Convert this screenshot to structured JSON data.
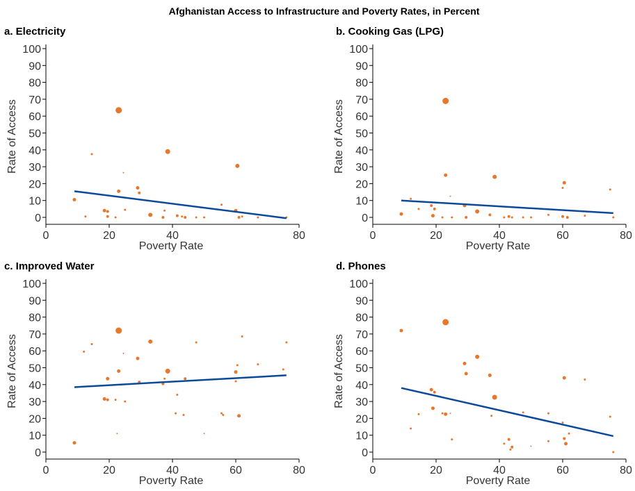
{
  "title": "Afghanistan Access to Infrastructure and Poverty Rates, in Percent",
  "colors": {
    "point": "#e8772e",
    "trend": "#0b4a9b"
  },
  "chart_data": [
    {
      "type": "scatter",
      "panel_title": "a. Electricity",
      "xlabel": "Poverty Rate",
      "ylabel": "Rate of Access",
      "xlim": [
        0,
        80
      ],
      "ylim": [
        0,
        100
      ],
      "xticks": [
        "0",
        "20",
        "40",
        "80"
      ],
      "yticks": [
        "0",
        "10",
        "20",
        "30",
        "40",
        "50",
        "60",
        "70",
        "80",
        "90",
        "100"
      ],
      "grid": false,
      "trend": [
        [
          9,
          15.5
        ],
        [
          76,
          -0.5
        ]
      ],
      "points": [
        {
          "x": 23,
          "y": 63.5,
          "s": 4.5
        },
        {
          "x": 38.5,
          "y": 39,
          "s": 3.5
        },
        {
          "x": 60.5,
          "y": 30.5,
          "s": 3
        },
        {
          "x": 14.5,
          "y": 37.5,
          "s": 1.5
        },
        {
          "x": 24.5,
          "y": 26.5,
          "s": 1
        },
        {
          "x": 29,
          "y": 17.5,
          "s": 2.5
        },
        {
          "x": 23,
          "y": 15.5,
          "s": 2.5
        },
        {
          "x": 29.5,
          "y": 14.5,
          "s": 2
        },
        {
          "x": 9,
          "y": 10.5,
          "s": 2.5
        },
        {
          "x": 18.5,
          "y": 4,
          "s": 2.5
        },
        {
          "x": 19.5,
          "y": 3.5,
          "s": 2
        },
        {
          "x": 25,
          "y": 4.5,
          "s": 1.5
        },
        {
          "x": 37.5,
          "y": 4,
          "s": 1.5
        },
        {
          "x": 55.5,
          "y": 7.5,
          "s": 1.5
        },
        {
          "x": 60,
          "y": 4,
          "s": 2.5
        },
        {
          "x": 33,
          "y": 1.5,
          "s": 3
        },
        {
          "x": 19.5,
          "y": 0.5,
          "s": 2
        },
        {
          "x": 12.5,
          "y": 0.5,
          "s": 1.5
        },
        {
          "x": 22,
          "y": 0,
          "s": 1.5
        },
        {
          "x": 37,
          "y": 0,
          "s": 2
        },
        {
          "x": 41.5,
          "y": 1,
          "s": 2
        },
        {
          "x": 43,
          "y": 0.5,
          "s": 1.5
        },
        {
          "x": 44,
          "y": 0,
          "s": 2
        },
        {
          "x": 47.5,
          "y": 0,
          "s": 1.5
        },
        {
          "x": 50,
          "y": 0,
          "s": 1.5
        },
        {
          "x": 61,
          "y": 0,
          "s": 2
        },
        {
          "x": 62,
          "y": 0.5,
          "s": 1.5
        },
        {
          "x": 67,
          "y": 0,
          "s": 1.5
        },
        {
          "x": 76,
          "y": 0,
          "s": 1.5
        }
      ]
    },
    {
      "type": "scatter",
      "panel_title": "b. Cooking Gas (LPG)",
      "xlabel": "Poverty Rate",
      "ylabel": "Rate of Access",
      "xlim": [
        0,
        80
      ],
      "ylim": [
        0,
        100
      ],
      "xticks": [
        "0",
        "20",
        "40",
        "60",
        "80"
      ],
      "yticks": [
        "0",
        "10",
        "20",
        "30",
        "40",
        "50",
        "60",
        "70",
        "80",
        "90",
        "100"
      ],
      "grid": false,
      "trend": [
        [
          9,
          10
        ],
        [
          76,
          2.5
        ]
      ],
      "points": [
        {
          "x": 23,
          "y": 69,
          "s": 4.5
        },
        {
          "x": 23,
          "y": 25,
          "s": 2.5
        },
        {
          "x": 38.5,
          "y": 24,
          "s": 3
        },
        {
          "x": 60.5,
          "y": 20.5,
          "s": 2.5
        },
        {
          "x": 60,
          "y": 17.5,
          "s": 1.5
        },
        {
          "x": 75,
          "y": 16.5,
          "s": 1.5
        },
        {
          "x": 24.5,
          "y": 12.5,
          "s": 1
        },
        {
          "x": 12,
          "y": 11,
          "s": 1.5
        },
        {
          "x": 29,
          "y": 7,
          "s": 2.5
        },
        {
          "x": 18.5,
          "y": 7,
          "s": 2
        },
        {
          "x": 14.5,
          "y": 5,
          "s": 1.5
        },
        {
          "x": 19.5,
          "y": 5,
          "s": 2
        },
        {
          "x": 33,
          "y": 3.5,
          "s": 3
        },
        {
          "x": 9,
          "y": 2,
          "s": 2.5
        },
        {
          "x": 19,
          "y": 1,
          "s": 2.5
        },
        {
          "x": 37,
          "y": 1.5,
          "s": 2
        },
        {
          "x": 55.5,
          "y": 1.5,
          "s": 1.5
        },
        {
          "x": 67,
          "y": 1,
          "s": 1.5
        },
        {
          "x": 22,
          "y": 0,
          "s": 1.5
        },
        {
          "x": 25,
          "y": 0,
          "s": 1.5
        },
        {
          "x": 29.5,
          "y": 0,
          "s": 2
        },
        {
          "x": 41.5,
          "y": 0,
          "s": 1.5
        },
        {
          "x": 43,
          "y": 0.5,
          "s": 2
        },
        {
          "x": 44,
          "y": 0,
          "s": 1.5
        },
        {
          "x": 47.5,
          "y": 0,
          "s": 1.5
        },
        {
          "x": 50,
          "y": 0,
          "s": 1.5
        },
        {
          "x": 60,
          "y": 0.5,
          "s": 2
        },
        {
          "x": 61.5,
          "y": 0,
          "s": 2
        },
        {
          "x": 76,
          "y": 0,
          "s": 1.5
        }
      ]
    },
    {
      "type": "scatter",
      "panel_title": "c. Improved Water",
      "xlabel": "Poverty Rate",
      "ylabel": "Rate of Access",
      "xlim": [
        0,
        80
      ],
      "ylim": [
        0,
        100
      ],
      "xticks": [
        "0",
        "20",
        "40",
        "60",
        "80"
      ],
      "yticks": [
        "0",
        "10",
        "20",
        "30",
        "40",
        "50",
        "60",
        "70",
        "80",
        "90",
        "100"
      ],
      "grid": false,
      "trend": [
        [
          9,
          38.5
        ],
        [
          76,
          45.5
        ]
      ],
      "points": [
        {
          "x": 23,
          "y": 72,
          "s": 4.5
        },
        {
          "x": 33,
          "y": 65.5,
          "s": 3
        },
        {
          "x": 14.5,
          "y": 64,
          "s": 1.5
        },
        {
          "x": 47.5,
          "y": 65,
          "s": 1.5
        },
        {
          "x": 76,
          "y": 65,
          "s": 1.5
        },
        {
          "x": 12,
          "y": 59.5,
          "s": 1.5
        },
        {
          "x": 24.5,
          "y": 58.5,
          "s": 1
        },
        {
          "x": 29,
          "y": 55.5,
          "s": 2.5
        },
        {
          "x": 62,
          "y": 68.5,
          "s": 1.5
        },
        {
          "x": 67,
          "y": 52,
          "s": 1.5
        },
        {
          "x": 60.5,
          "y": 51.5,
          "s": 1.5
        },
        {
          "x": 75,
          "y": 49,
          "s": 1.5
        },
        {
          "x": 23,
          "y": 48,
          "s": 2.5
        },
        {
          "x": 38.5,
          "y": 48,
          "s": 3.5
        },
        {
          "x": 60,
          "y": 47.5,
          "s": 2.5
        },
        {
          "x": 19.5,
          "y": 43.5,
          "s": 2.5
        },
        {
          "x": 37.5,
          "y": 43.5,
          "s": 1.5
        },
        {
          "x": 44,
          "y": 43.5,
          "s": 2
        },
        {
          "x": 29.5,
          "y": 41.5,
          "s": 2
        },
        {
          "x": 37,
          "y": 40.5,
          "s": 2
        },
        {
          "x": 60,
          "y": 42,
          "s": 1.5
        },
        {
          "x": 41.5,
          "y": 34,
          "s": 1.5
        },
        {
          "x": 18.5,
          "y": 31.5,
          "s": 2.5
        },
        {
          "x": 19.5,
          "y": 31,
          "s": 2
        },
        {
          "x": 22,
          "y": 31,
          "s": 1.5
        },
        {
          "x": 25,
          "y": 30,
          "s": 1.5
        },
        {
          "x": 41,
          "y": 23,
          "s": 1.5
        },
        {
          "x": 43.5,
          "y": 22,
          "s": 1.5
        },
        {
          "x": 55.5,
          "y": 23,
          "s": 1.5
        },
        {
          "x": 56,
          "y": 22,
          "s": 1.5
        },
        {
          "x": 61,
          "y": 21.5,
          "s": 2.5
        },
        {
          "x": 22.5,
          "y": 11,
          "s": 1
        },
        {
          "x": 50,
          "y": 11,
          "s": 1
        },
        {
          "x": 9,
          "y": 5.5,
          "s": 2.5
        }
      ]
    },
    {
      "type": "scatter",
      "panel_title": "d. Phones",
      "xlabel": "Poverty Rate",
      "ylabel": "Rate of Access",
      "xlim": [
        0,
        80
      ],
      "ylim": [
        0,
        100
      ],
      "xticks": [
        "0",
        "20",
        "40",
        "60",
        "80"
      ],
      "yticks": [
        "0",
        "10",
        "20",
        "30",
        "40",
        "50",
        "60",
        "70",
        "80",
        "90",
        "100"
      ],
      "grid": false,
      "trend": [
        [
          9,
          38
        ],
        [
          76,
          9.5
        ]
      ],
      "points": [
        {
          "x": 23,
          "y": 77,
          "s": 4.5
        },
        {
          "x": 9,
          "y": 72,
          "s": 2.5
        },
        {
          "x": 33,
          "y": 56.5,
          "s": 3
        },
        {
          "x": 29,
          "y": 52.5,
          "s": 2.5
        },
        {
          "x": 29.5,
          "y": 46.5,
          "s": 2.5
        },
        {
          "x": 37,
          "y": 45.5,
          "s": 2.5
        },
        {
          "x": 60.5,
          "y": 44,
          "s": 2.5
        },
        {
          "x": 67,
          "y": 43,
          "s": 1.5
        },
        {
          "x": 18.5,
          "y": 37,
          "s": 2.5
        },
        {
          "x": 19.5,
          "y": 35.5,
          "s": 2
        },
        {
          "x": 38.5,
          "y": 32.5,
          "s": 3.5
        },
        {
          "x": 19,
          "y": 26,
          "s": 2.5
        },
        {
          "x": 14.5,
          "y": 22.5,
          "s": 1.5
        },
        {
          "x": 22,
          "y": 23,
          "s": 1.5
        },
        {
          "x": 23,
          "y": 22.5,
          "s": 2.5
        },
        {
          "x": 24.5,
          "y": 23,
          "s": 1
        },
        {
          "x": 37.5,
          "y": 21.5,
          "s": 1.5
        },
        {
          "x": 47.5,
          "y": 23.5,
          "s": 1.5
        },
        {
          "x": 55.5,
          "y": 23,
          "s": 1.5
        },
        {
          "x": 75,
          "y": 21,
          "s": 1.5
        },
        {
          "x": 60,
          "y": 17.5,
          "s": 1.5
        },
        {
          "x": 12,
          "y": 14,
          "s": 1.5
        },
        {
          "x": 62,
          "y": 11,
          "s": 1.5
        },
        {
          "x": 25,
          "y": 7.5,
          "s": 1.5
        },
        {
          "x": 43,
          "y": 7.5,
          "s": 2
        },
        {
          "x": 60.5,
          "y": 8,
          "s": 2
        },
        {
          "x": 55.5,
          "y": 6.5,
          "s": 1.5
        },
        {
          "x": 41.5,
          "y": 5,
          "s": 1.5
        },
        {
          "x": 61,
          "y": 5,
          "s": 2.5
        },
        {
          "x": 44,
          "y": 3,
          "s": 2
        },
        {
          "x": 43.5,
          "y": 1.5,
          "s": 1.5
        },
        {
          "x": 50,
          "y": 3.5,
          "s": 1
        },
        {
          "x": 76,
          "y": 0,
          "s": 1.5
        }
      ]
    }
  ]
}
